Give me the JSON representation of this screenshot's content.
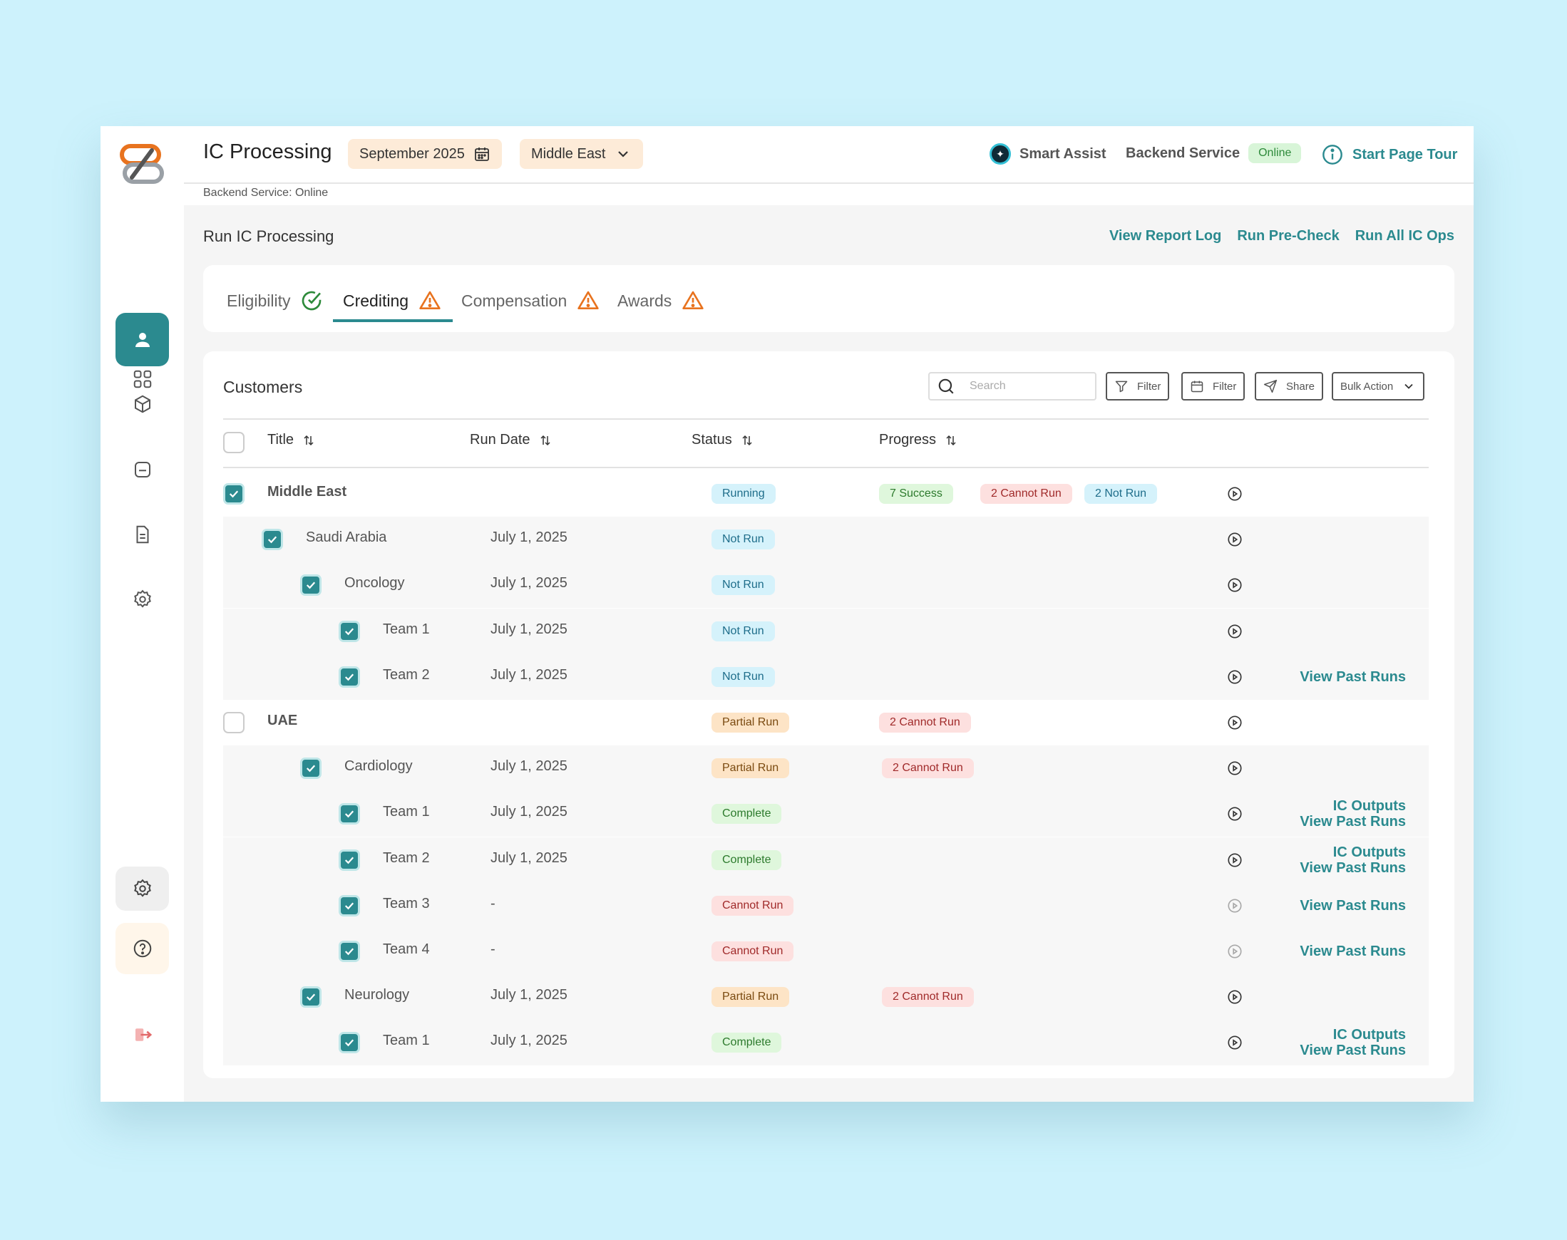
{
  "header": {
    "app_title": "IC Processing",
    "month": "September 2025",
    "region": "Middle East",
    "smart_assist": "Smart Assist",
    "backend_label": "Backend Service",
    "backend_status": "Online",
    "tour": "Start Page Tour",
    "sub_status": "Backend Service: Online"
  },
  "section": {
    "title": "Run IC Processing",
    "links": [
      "View Report Log",
      "Run Pre-Check",
      "Run All IC Ops"
    ]
  },
  "tabs": [
    {
      "label": "Eligibility",
      "state": "success"
    },
    {
      "label": "Crediting",
      "state": "warning"
    },
    {
      "label": "Compensation",
      "state": "warning"
    },
    {
      "label": "Awards",
      "state": "warning"
    }
  ],
  "table": {
    "title": "Customers",
    "search_placeholder": "Search",
    "buttons": {
      "filter1": "Filter",
      "filter2": "Filter",
      "share": "Share",
      "bulk": "Bulk Action"
    },
    "columns": [
      "Title",
      "Run Date",
      "Status",
      "Progress"
    ],
    "rows": [
      {
        "title": "Middle East",
        "date": "",
        "status": "Running",
        "progress": [
          "7 Success",
          "2 Cannot Run",
          "2 Not Run"
        ],
        "actions": []
      },
      {
        "title": "Saudi Arabia",
        "date": "July 1, 2025",
        "status": "Not Run",
        "progress": [],
        "actions": []
      },
      {
        "title": "Oncology",
        "date": "July 1, 2025",
        "status": "Not Run",
        "progress": [],
        "actions": []
      },
      {
        "title": "Team 1",
        "date": "July 1, 2025",
        "status": "Not Run",
        "progress": [],
        "actions": []
      },
      {
        "title": "Team 2",
        "date": "July 1, 2025",
        "status": "Not Run",
        "progress": [],
        "actions": [
          "View Past Runs"
        ]
      },
      {
        "title": "UAE",
        "date": "",
        "status": "Partial Run",
        "progress": [
          "2 Cannot Run"
        ],
        "actions": []
      },
      {
        "title": "Cardiology",
        "date": "July 1, 2025",
        "status": "Partial Run",
        "progress": [
          "2 Cannot Run"
        ],
        "actions": []
      },
      {
        "title": "Team 1",
        "date": "July 1, 2025",
        "status": "Complete",
        "progress": [],
        "actions": [
          "IC Outputs",
          "View Past Runs"
        ]
      },
      {
        "title": "Team 2",
        "date": "July 1, 2025",
        "status": "Complete",
        "progress": [],
        "actions": [
          "IC Outputs",
          "View Past Runs"
        ]
      },
      {
        "title": "Team 3",
        "date": "-",
        "status": "Cannot Run",
        "progress": [],
        "actions": [
          "View Past Runs"
        ]
      },
      {
        "title": "Team 4",
        "date": "-",
        "status": "Cannot Run",
        "progress": [],
        "actions": [
          "View Past Runs"
        ]
      },
      {
        "title": "Neurology",
        "date": "July 1, 2025",
        "status": "Partial Run",
        "progress": [
          "2 Cannot Run"
        ],
        "actions": []
      },
      {
        "title": "Team 1",
        "date": "July 1, 2025",
        "status": "Complete",
        "progress": [],
        "actions": [
          "IC Outputs",
          "View Past Runs"
        ]
      }
    ]
  },
  "colors": {
    "accent": "#2b8a8f",
    "warning": "#e8731f",
    "success": "#2d8a3a"
  }
}
